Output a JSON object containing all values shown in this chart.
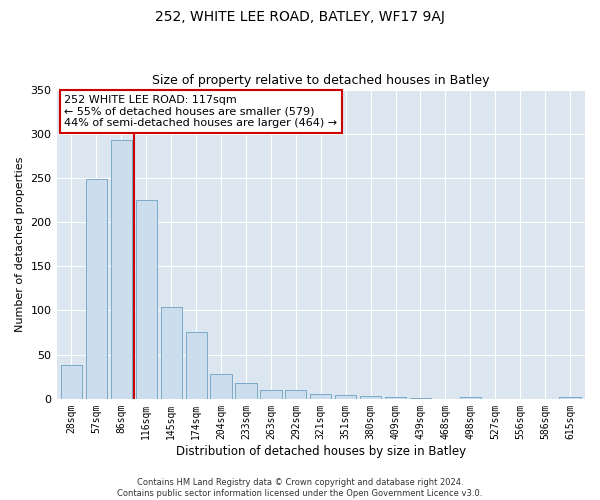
{
  "title": "252, WHITE LEE ROAD, BATLEY, WF17 9AJ",
  "subtitle": "Size of property relative to detached houses in Batley",
  "xlabel": "Distribution of detached houses by size in Batley",
  "ylabel": "Number of detached properties",
  "bar_labels": [
    "28sqm",
    "57sqm",
    "86sqm",
    "116sqm",
    "145sqm",
    "174sqm",
    "204sqm",
    "233sqm",
    "263sqm",
    "292sqm",
    "321sqm",
    "351sqm",
    "380sqm",
    "409sqm",
    "439sqm",
    "468sqm",
    "498sqm",
    "527sqm",
    "556sqm",
    "586sqm",
    "615sqm"
  ],
  "bar_values": [
    38,
    249,
    293,
    225,
    104,
    76,
    28,
    18,
    10,
    10,
    5,
    4,
    3,
    2,
    1,
    0,
    2,
    0,
    0,
    0,
    2
  ],
  "bar_color": "#ccdded",
  "bar_edge_color": "#7aaac8",
  "vline_color": "#cc0000",
  "vline_x_idx": 2.5,
  "annotation_title": "252 WHITE LEE ROAD: 117sqm",
  "annotation_line1": "← 55% of detached houses are smaller (579)",
  "annotation_line2": "44% of semi-detached houses are larger (464) →",
  "annotation_box_color": "white",
  "annotation_box_edge": "#cc0000",
  "ylim": [
    0,
    350
  ],
  "yticks": [
    0,
    50,
    100,
    150,
    200,
    250,
    300,
    350
  ],
  "plot_bg_color": "#dce6f0",
  "grid_color": "white",
  "footer_line1": "Contains HM Land Registry data © Crown copyright and database right 2024.",
  "footer_line2": "Contains public sector information licensed under the Open Government Licence v3.0.",
  "title_fontsize": 10,
  "subtitle_fontsize": 9,
  "xlabel_fontsize": 8.5,
  "ylabel_fontsize": 8,
  "tick_fontsize": 7,
  "footer_fontsize": 6,
  "ann_fontsize": 8
}
